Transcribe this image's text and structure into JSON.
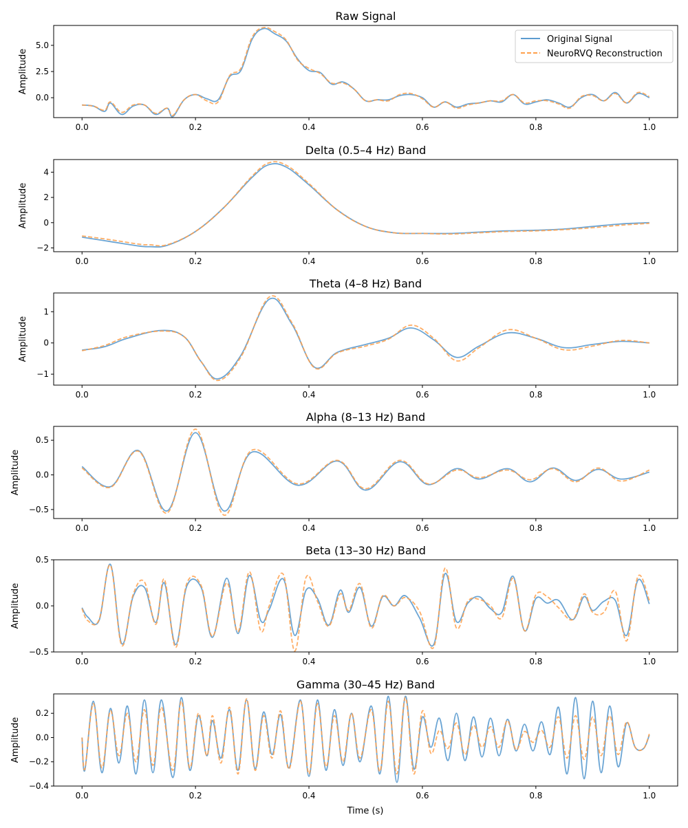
{
  "figure": {
    "xlabel": "Time (s)",
    "legend": {
      "placement": "upper-right of first panel",
      "entries": [
        {
          "label": "Original Signal",
          "style": "solid",
          "color": "#5b9bcf"
        },
        {
          "label": "NeuroRVQ Reconstruction",
          "style": "dashed",
          "color": "#ff9f4a"
        }
      ]
    }
  },
  "chart_data": [
    {
      "type": "line",
      "title": "Raw Signal",
      "xlabel": "",
      "ylabel": "Amplitude",
      "xlim": [
        -0.05,
        1.05
      ],
      "ylim": [
        -1.9,
        6.9
      ],
      "xticks": [
        "0.0",
        "0.2",
        "0.4",
        "0.6",
        "0.8",
        "1.0"
      ],
      "yticks": [
        {
          "v": 0.0,
          "label": "0.0"
        },
        {
          "v": 2.5,
          "label": "2.5"
        },
        {
          "v": 5.0,
          "label": "5.0"
        }
      ],
      "x": [
        0.0,
        0.02,
        0.04,
        0.05,
        0.07,
        0.09,
        0.11,
        0.13,
        0.15,
        0.16,
        0.18,
        0.2,
        0.22,
        0.24,
        0.26,
        0.28,
        0.3,
        0.32,
        0.34,
        0.36,
        0.38,
        0.4,
        0.42,
        0.44,
        0.46,
        0.48,
        0.5,
        0.52,
        0.54,
        0.56,
        0.58,
        0.6,
        0.62,
        0.64,
        0.66,
        0.68,
        0.7,
        0.72,
        0.74,
        0.76,
        0.78,
        0.8,
        0.82,
        0.84,
        0.86,
        0.88,
        0.9,
        0.92,
        0.94,
        0.96,
        0.98,
        1.0
      ],
      "series": [
        {
          "name": "Original Signal",
          "values": [
            -0.7,
            -0.8,
            -1.3,
            -0.5,
            -1.6,
            -0.8,
            -0.7,
            -1.6,
            -1.0,
            -1.8,
            -0.2,
            0.3,
            -0.1,
            -0.2,
            2.0,
            2.6,
            5.6,
            6.6,
            6.1,
            5.4,
            3.7,
            2.6,
            2.4,
            1.3,
            1.5,
            0.8,
            -0.3,
            -0.2,
            -0.2,
            0.2,
            0.3,
            0.0,
            -0.9,
            -0.4,
            -0.9,
            -0.6,
            -0.5,
            -0.3,
            -0.4,
            0.3,
            -0.6,
            -0.4,
            -0.2,
            -0.5,
            -0.9,
            0.0,
            0.3,
            -0.3,
            0.5,
            -0.5,
            0.4,
            0.0
          ]
        },
        {
          "name": "NeuroRVQ Reconstruction",
          "values": [
            -0.7,
            -0.8,
            -1.2,
            -0.4,
            -1.4,
            -0.7,
            -0.7,
            -1.5,
            -1.0,
            -1.7,
            -0.2,
            0.3,
            -0.3,
            -0.4,
            2.1,
            2.8,
            5.8,
            6.7,
            6.3,
            5.5,
            3.6,
            2.8,
            2.3,
            1.4,
            1.4,
            0.8,
            -0.3,
            -0.2,
            -0.3,
            0.3,
            0.4,
            -0.1,
            -0.9,
            -0.4,
            -1.0,
            -0.7,
            -0.5,
            -0.3,
            -0.3,
            0.3,
            -0.5,
            -0.3,
            -0.3,
            -0.6,
            -1.0,
            0.1,
            0.2,
            -0.3,
            0.4,
            -0.5,
            0.5,
            0.1
          ]
        }
      ]
    },
    {
      "type": "line",
      "title": "Delta (0.5–4 Hz) Band",
      "xlabel": "",
      "ylabel": "Amplitude",
      "xlim": [
        -0.05,
        1.05
      ],
      "ylim": [
        -2.3,
        5.0
      ],
      "xticks": [
        "0.0",
        "0.2",
        "0.4",
        "0.6",
        "0.8",
        "1.0"
      ],
      "yticks": [
        {
          "v": -2,
          "label": "−2"
        },
        {
          "v": 0,
          "label": "0"
        },
        {
          "v": 2,
          "label": "2"
        },
        {
          "v": 4,
          "label": "4"
        }
      ],
      "x": [
        0.0,
        0.05,
        0.1,
        0.12,
        0.15,
        0.2,
        0.25,
        0.3,
        0.33,
        0.36,
        0.4,
        0.45,
        0.5,
        0.55,
        0.6,
        0.65,
        0.7,
        0.75,
        0.8,
        0.85,
        0.9,
        0.95,
        1.0
      ],
      "series": [
        {
          "name": "Original Signal",
          "values": [
            -1.15,
            -1.5,
            -1.85,
            -1.9,
            -1.8,
            -0.7,
            1.2,
            3.6,
            4.6,
            4.4,
            3.0,
            1.0,
            -0.3,
            -0.8,
            -0.85,
            -0.85,
            -0.75,
            -0.65,
            -0.6,
            -0.5,
            -0.3,
            -0.1,
            0.0
          ]
        },
        {
          "name": "NeuroRVQ Reconstruction",
          "values": [
            -1.05,
            -1.35,
            -1.7,
            -1.75,
            -1.75,
            -0.7,
            1.2,
            3.7,
            4.75,
            4.55,
            3.1,
            1.0,
            -0.3,
            -0.8,
            -0.85,
            -0.9,
            -0.8,
            -0.7,
            -0.65,
            -0.55,
            -0.4,
            -0.2,
            -0.05
          ]
        }
      ]
    },
    {
      "type": "line",
      "title": "Theta (4–8 Hz) Band",
      "xlabel": "",
      "ylabel": "Amplitude",
      "xlim": [
        -0.05,
        1.05
      ],
      "ylim": [
        -1.35,
        1.6
      ],
      "xticks": [
        "0.0",
        "0.2",
        "0.4",
        "0.6",
        "0.8",
        "1.0"
      ],
      "yticks": [
        {
          "v": -1,
          "label": "−1"
        },
        {
          "v": 0,
          "label": "0"
        },
        {
          "v": 1,
          "label": "1"
        }
      ],
      "x": [
        0.0,
        0.04,
        0.08,
        0.14,
        0.18,
        0.21,
        0.24,
        0.28,
        0.33,
        0.37,
        0.41,
        0.45,
        0.5,
        0.54,
        0.58,
        0.62,
        0.66,
        0.7,
        0.75,
        0.8,
        0.85,
        0.9,
        0.95,
        1.0
      ],
      "series": [
        {
          "name": "Original Signal",
          "values": [
            -0.23,
            -0.12,
            0.15,
            0.4,
            0.2,
            -0.6,
            -1.15,
            -0.4,
            1.4,
            0.6,
            -0.78,
            -0.3,
            -0.05,
            0.15,
            0.48,
            0.1,
            -0.46,
            -0.1,
            0.32,
            0.15,
            -0.15,
            -0.05,
            0.05,
            0.0
          ]
        },
        {
          "name": "NeuroRVQ Reconstruction",
          "values": [
            -0.25,
            -0.08,
            0.2,
            0.38,
            0.2,
            -0.6,
            -1.2,
            -0.45,
            1.47,
            0.65,
            -0.8,
            -0.32,
            -0.1,
            0.12,
            0.57,
            0.15,
            -0.57,
            -0.15,
            0.42,
            0.15,
            -0.22,
            -0.1,
            0.08,
            0.0
          ]
        }
      ]
    },
    {
      "type": "line",
      "title": "Alpha (8–13 Hz) Band",
      "xlabel": "",
      "ylabel": "Amplitude",
      "xlim": [
        -0.05,
        1.05
      ],
      "ylim": [
        -0.63,
        0.7
      ],
      "xticks": [
        "0.0",
        "0.2",
        "0.4",
        "0.6",
        "0.8",
        "1.0"
      ],
      "yticks": [
        {
          "v": -0.5,
          "label": "−0.5"
        },
        {
          "v": 0.0,
          "label": "0.0"
        },
        {
          "v": 0.5,
          "label": "0.5"
        }
      ],
      "x": [
        0.0,
        0.05,
        0.1,
        0.15,
        0.2,
        0.25,
        0.3,
        0.38,
        0.45,
        0.5,
        0.56,
        0.61,
        0.66,
        0.7,
        0.75,
        0.79,
        0.83,
        0.87,
        0.91,
        0.95,
        1.0
      ],
      "series": [
        {
          "name": "Original Signal",
          "values": [
            0.12,
            -0.17,
            0.35,
            -0.52,
            0.61,
            -0.52,
            0.33,
            -0.15,
            0.2,
            -0.22,
            0.19,
            -0.14,
            0.09,
            -0.06,
            0.09,
            -0.1,
            0.1,
            -0.08,
            0.08,
            -0.06,
            0.04
          ]
        },
        {
          "name": "NeuroRVQ Reconstruction",
          "values": [
            0.1,
            -0.18,
            0.34,
            -0.55,
            0.66,
            -0.58,
            0.36,
            -0.13,
            0.21,
            -0.2,
            0.21,
            -0.13,
            0.07,
            -0.04,
            0.07,
            -0.07,
            0.09,
            -0.1,
            0.1,
            -0.09,
            0.07
          ]
        }
      ]
    },
    {
      "type": "line",
      "title": "Beta (13–30 Hz) Band",
      "xlabel": "",
      "ylabel": "Amplitude",
      "xlim": [
        -0.05,
        1.05
      ],
      "ylim": [
        -0.5,
        0.5
      ],
      "xticks": [
        "0.0",
        "0.2",
        "0.4",
        "0.6",
        "0.8",
        "1.0"
      ],
      "yticks": [
        {
          "v": -0.5,
          "label": "−0.5"
        },
        {
          "v": 0.0,
          "label": "0.0"
        },
        {
          "v": 0.5,
          "label": "0.5"
        }
      ],
      "x": [
        0.0,
        0.01,
        0.03,
        0.05,
        0.07,
        0.09,
        0.11,
        0.13,
        0.145,
        0.165,
        0.185,
        0.21,
        0.23,
        0.255,
        0.275,
        0.295,
        0.315,
        0.33,
        0.355,
        0.375,
        0.395,
        0.415,
        0.435,
        0.455,
        0.47,
        0.49,
        0.51,
        0.53,
        0.55,
        0.57,
        0.595,
        0.62,
        0.64,
        0.66,
        0.68,
        0.7,
        0.72,
        0.74,
        0.76,
        0.78,
        0.8,
        0.82,
        0.84,
        0.865,
        0.885,
        0.9,
        0.92,
        0.94,
        0.96,
        0.98,
        1.0
      ],
      "series": [
        {
          "name": "Original Signal",
          "values": [
            -0.02,
            -0.12,
            -0.16,
            0.45,
            -0.41,
            0.1,
            0.2,
            -0.18,
            0.25,
            -0.42,
            0.22,
            0.2,
            -0.34,
            0.3,
            -0.3,
            0.33,
            -0.16,
            -0.04,
            0.29,
            -0.32,
            0.17,
            0.08,
            -0.21,
            0.17,
            -0.07,
            0.2,
            -0.22,
            0.1,
            0.0,
            0.11,
            -0.13,
            -0.42,
            0.35,
            -0.17,
            0.03,
            0.1,
            -0.03,
            -0.07,
            0.32,
            -0.27,
            0.08,
            0.03,
            0.06,
            -0.15,
            0.1,
            -0.05,
            0.05,
            0.06,
            -0.32,
            0.28,
            0.02
          ]
        },
        {
          "name": "NeuroRVQ Reconstruction",
          "values": [
            -0.03,
            -0.16,
            -0.15,
            0.44,
            -0.43,
            0.12,
            0.26,
            -0.2,
            0.29,
            -0.45,
            0.25,
            0.22,
            -0.33,
            0.25,
            -0.28,
            0.37,
            -0.27,
            0.0,
            0.34,
            -0.49,
            0.31,
            0.05,
            -0.22,
            0.13,
            -0.05,
            0.24,
            -0.24,
            0.11,
            0.0,
            0.09,
            -0.06,
            -0.45,
            0.41,
            -0.24,
            0.05,
            0.07,
            0.0,
            -0.13,
            0.3,
            -0.27,
            0.12,
            0.1,
            -0.02,
            -0.15,
            0.13,
            -0.07,
            -0.07,
            0.16,
            -0.38,
            0.32,
            0.06
          ]
        }
      ]
    },
    {
      "type": "line",
      "title": "Gamma (30–45 Hz) Band",
      "xlabel": "Time (s)",
      "ylabel": "Amplitude",
      "xlim": [
        -0.05,
        1.05
      ],
      "ylim": [
        -0.4,
        0.36
      ],
      "xticks": [
        "0.0",
        "0.2",
        "0.4",
        "0.6",
        "0.8",
        "1.0"
      ],
      "yticks": [
        {
          "v": -0.4,
          "label": "−0.4"
        },
        {
          "v": -0.2,
          "label": "−0.2"
        },
        {
          "v": 0.0,
          "label": "0.0"
        },
        {
          "v": 0.2,
          "label": "0.2"
        }
      ],
      "x": [
        0.0,
        0.005,
        0.02,
        0.035,
        0.05,
        0.065,
        0.08,
        0.095,
        0.11,
        0.125,
        0.14,
        0.16,
        0.175,
        0.19,
        0.205,
        0.22,
        0.23,
        0.245,
        0.26,
        0.275,
        0.29,
        0.305,
        0.32,
        0.335,
        0.35,
        0.365,
        0.385,
        0.4,
        0.415,
        0.43,
        0.445,
        0.46,
        0.475,
        0.49,
        0.51,
        0.525,
        0.54,
        0.555,
        0.57,
        0.585,
        0.6,
        0.615,
        0.63,
        0.645,
        0.66,
        0.675,
        0.69,
        0.705,
        0.72,
        0.735,
        0.75,
        0.765,
        0.78,
        0.795,
        0.81,
        0.825,
        0.84,
        0.855,
        0.87,
        0.885,
        0.9,
        0.915,
        0.93,
        0.945,
        0.96,
        0.975,
        0.99,
        1.0
      ],
      "series": [
        {
          "name": "Original Signal",
          "values": [
            0.0,
            -0.27,
            0.3,
            -0.29,
            0.24,
            -0.21,
            0.26,
            -0.3,
            0.31,
            -0.29,
            0.31,
            -0.33,
            0.33,
            -0.27,
            0.18,
            -0.15,
            0.14,
            -0.17,
            0.23,
            -0.27,
            0.31,
            -0.26,
            0.21,
            -0.14,
            0.19,
            -0.25,
            0.31,
            -0.32,
            0.31,
            -0.27,
            0.23,
            -0.23,
            0.2,
            -0.2,
            0.26,
            -0.3,
            0.34,
            -0.37,
            0.34,
            -0.26,
            0.17,
            -0.08,
            0.16,
            -0.19,
            0.2,
            -0.19,
            0.17,
            -0.16,
            0.16,
            -0.15,
            0.15,
            -0.11,
            0.11,
            -0.11,
            0.13,
            -0.14,
            0.25,
            -0.3,
            0.33,
            -0.34,
            0.3,
            -0.29,
            0.26,
            -0.24,
            0.12,
            -0.08,
            -0.09,
            0.02
          ]
        },
        {
          "name": "NeuroRVQ Reconstruction",
          "values": [
            0.0,
            -0.26,
            0.28,
            -0.25,
            0.22,
            -0.15,
            0.2,
            -0.2,
            0.23,
            -0.23,
            0.25,
            -0.27,
            0.3,
            -0.25,
            0.2,
            -0.15,
            0.18,
            -0.21,
            0.25,
            -0.3,
            0.32,
            -0.27,
            0.18,
            -0.17,
            0.22,
            -0.26,
            0.3,
            -0.3,
            0.28,
            -0.24,
            0.18,
            -0.2,
            0.2,
            -0.17,
            0.23,
            -0.28,
            0.3,
            -0.3,
            0.33,
            -0.3,
            0.22,
            -0.13,
            0.06,
            -0.09,
            0.12,
            -0.14,
            0.1,
            -0.08,
            0.09,
            -0.08,
            0.14,
            -0.1,
            0.05,
            -0.04,
            0.06,
            -0.08,
            0.17,
            -0.17,
            0.18,
            -0.18,
            0.17,
            -0.15,
            0.18,
            -0.14,
            0.13,
            -0.08,
            -0.09,
            0.03
          ]
        }
      ]
    }
  ]
}
